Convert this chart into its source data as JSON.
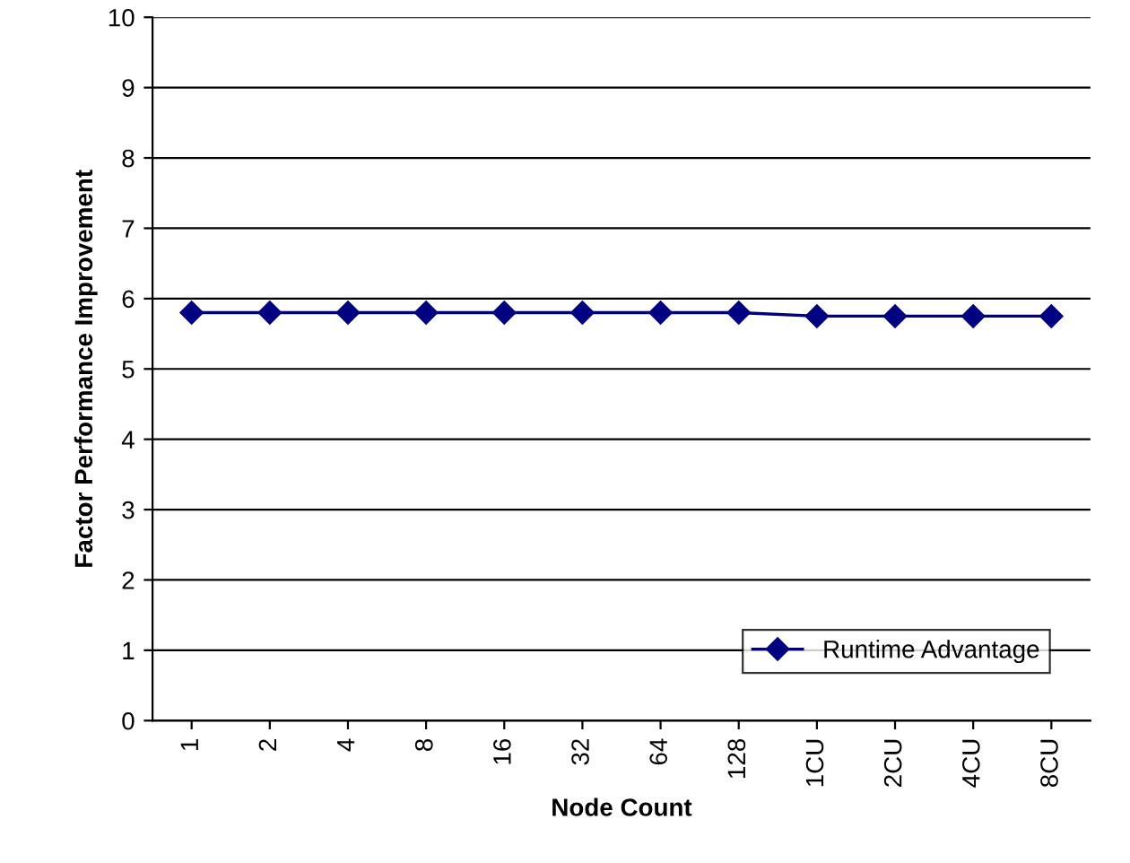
{
  "chart_data": {
    "type": "line",
    "xlabel": "Node Count",
    "ylabel": "Factor Performance Improvement",
    "categories": [
      "1",
      "2",
      "4",
      "8",
      "16",
      "32",
      "64",
      "128",
      "1CU",
      "2CU",
      "4CU",
      "8CU"
    ],
    "series": [
      {
        "name": "Runtime Advantage",
        "color": "#000080",
        "values": [
          5.8,
          5.8,
          5.8,
          5.8,
          5.8,
          5.8,
          5.8,
          5.8,
          5.75,
          5.75,
          5.75,
          5.75
        ]
      }
    ],
    "ylim": [
      0,
      10
    ],
    "yticks": [
      0,
      1,
      2,
      3,
      4,
      5,
      6,
      7,
      8,
      9,
      10
    ],
    "grid": "y",
    "legend": "bottom right",
    "marker": "diamond",
    "line_style": "solid"
  }
}
